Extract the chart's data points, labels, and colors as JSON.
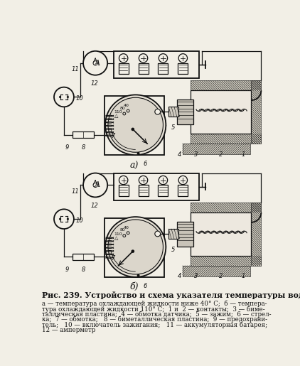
{
  "title": "Рис. 239. Устройство и схема указателя температуры воды:",
  "caption_lines": [
    "а — температура охлаждающей жидкости ниже 40° С;  б — темпера-",
    "тура охлаждающей жидкости 110° С;  1 и  2 — контакты;  3 — биме-",
    "таллическая пластина;  4 — обмотка датчика;  5 — зажим;  6 — стрел-",
    "ка;  7 — обмотка;   8 — биметаллическая пластина;  9 — предохрани-",
    "тель;   10 — включатель зажигания;   11 — аккумуляторная батарея;",
    "12 — амперметр"
  ],
  "label_a": "а)",
  "label_b": "б)",
  "bg_color": "#f2efe6",
  "diagram_color": "#111111",
  "fig_width": 4.22,
  "fig_height": 5.15,
  "dpi": 100
}
